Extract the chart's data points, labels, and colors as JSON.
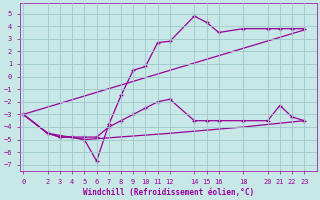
{
  "xlabel": "Windchill (Refroidissement éolien,°C)",
  "bg_color": "#c8e8e8",
  "grid_color": "#a0c8c8",
  "line_color": "#990099",
  "xticks": [
    0,
    2,
    3,
    4,
    5,
    6,
    7,
    8,
    9,
    10,
    11,
    12,
    14,
    15,
    16,
    18,
    20,
    21,
    22,
    23
  ],
  "yticks": [
    -7,
    -6,
    -5,
    -4,
    -3,
    -2,
    -1,
    0,
    1,
    2,
    3,
    4,
    5
  ],
  "ylim": [
    -7.5,
    5.8
  ],
  "xlim": [
    -0.3,
    24.0
  ],
  "series": [
    {
      "x": [
        0,
        2,
        3,
        4,
        5,
        6,
        7,
        8,
        9,
        10,
        11,
        12,
        14,
        15,
        16,
        18,
        20,
        21,
        22,
        23
      ],
      "y": [
        -3,
        -4.5,
        -4.8,
        -4.8,
        -5.0,
        -6.7,
        -3.8,
        -1.5,
        0.5,
        0.8,
        2.7,
        2.8,
        4.8,
        4.3,
        3.5,
        3.8,
        3.8,
        3.8,
        3.8,
        3.8
      ],
      "marker": true
    },
    {
      "x": [
        0,
        2,
        3,
        4,
        5,
        6,
        7,
        8,
        9,
        10,
        11,
        12,
        14,
        15,
        16,
        18,
        20,
        21,
        22,
        23
      ],
      "y": [
        -3,
        -4.5,
        -4.8,
        -4.8,
        -4.8,
        -4.8,
        -4.0,
        -3.5,
        -3.0,
        -2.5,
        -2.0,
        -1.8,
        -3.5,
        -3.5,
        -3.5,
        -3.5,
        -3.5,
        -2.3,
        -3.2,
        -3.5
      ],
      "marker": true
    },
    {
      "x": [
        0,
        23
      ],
      "y": [
        -3.0,
        3.7
      ],
      "marker": false
    },
    {
      "x": [
        0,
        2,
        5,
        12,
        18,
        23
      ],
      "y": [
        -3.0,
        -4.5,
        -5.0,
        -4.5,
        -4.0,
        -3.5
      ],
      "marker": false
    }
  ],
  "fontsize_axis": 5.5,
  "fontsize_tick": 5.0
}
